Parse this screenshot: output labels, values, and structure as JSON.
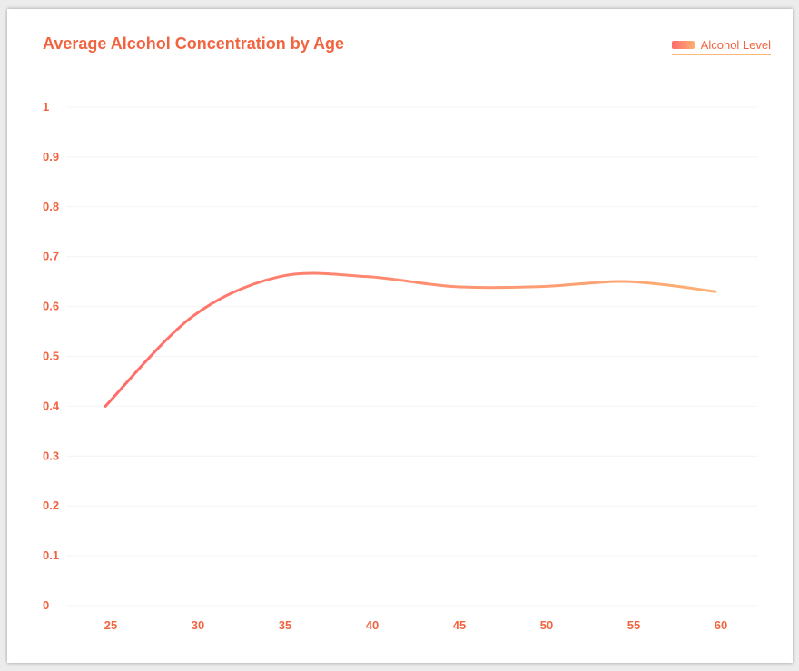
{
  "chart_data": {
    "type": "line",
    "title": "Average Alcohol Concentration by Age",
    "xlabel": "",
    "ylabel": "",
    "x": [
      25,
      30,
      35,
      40,
      45,
      50,
      55,
      60
    ],
    "series": [
      {
        "name": "Alcohol Level",
        "values": [
          0.4,
          0.58,
          0.66,
          0.66,
          0.64,
          0.64,
          0.65,
          0.63
        ]
      }
    ],
    "x_ticks": [
      "25",
      "30",
      "35",
      "40",
      "45",
      "50",
      "55",
      "60"
    ],
    "y_ticks": [
      "0",
      "0.1",
      "0.2",
      "0.3",
      "0.4",
      "0.5",
      "0.6",
      "0.7",
      "0.8",
      "0.9",
      "1"
    ],
    "ylim": [
      0,
      1
    ],
    "grid": true,
    "legend_position": "top-right",
    "colors": {
      "line_start": "#ff6b6b",
      "line_end": "#fdb075",
      "text": "#f26440",
      "grid": "#f4f4f4"
    }
  }
}
